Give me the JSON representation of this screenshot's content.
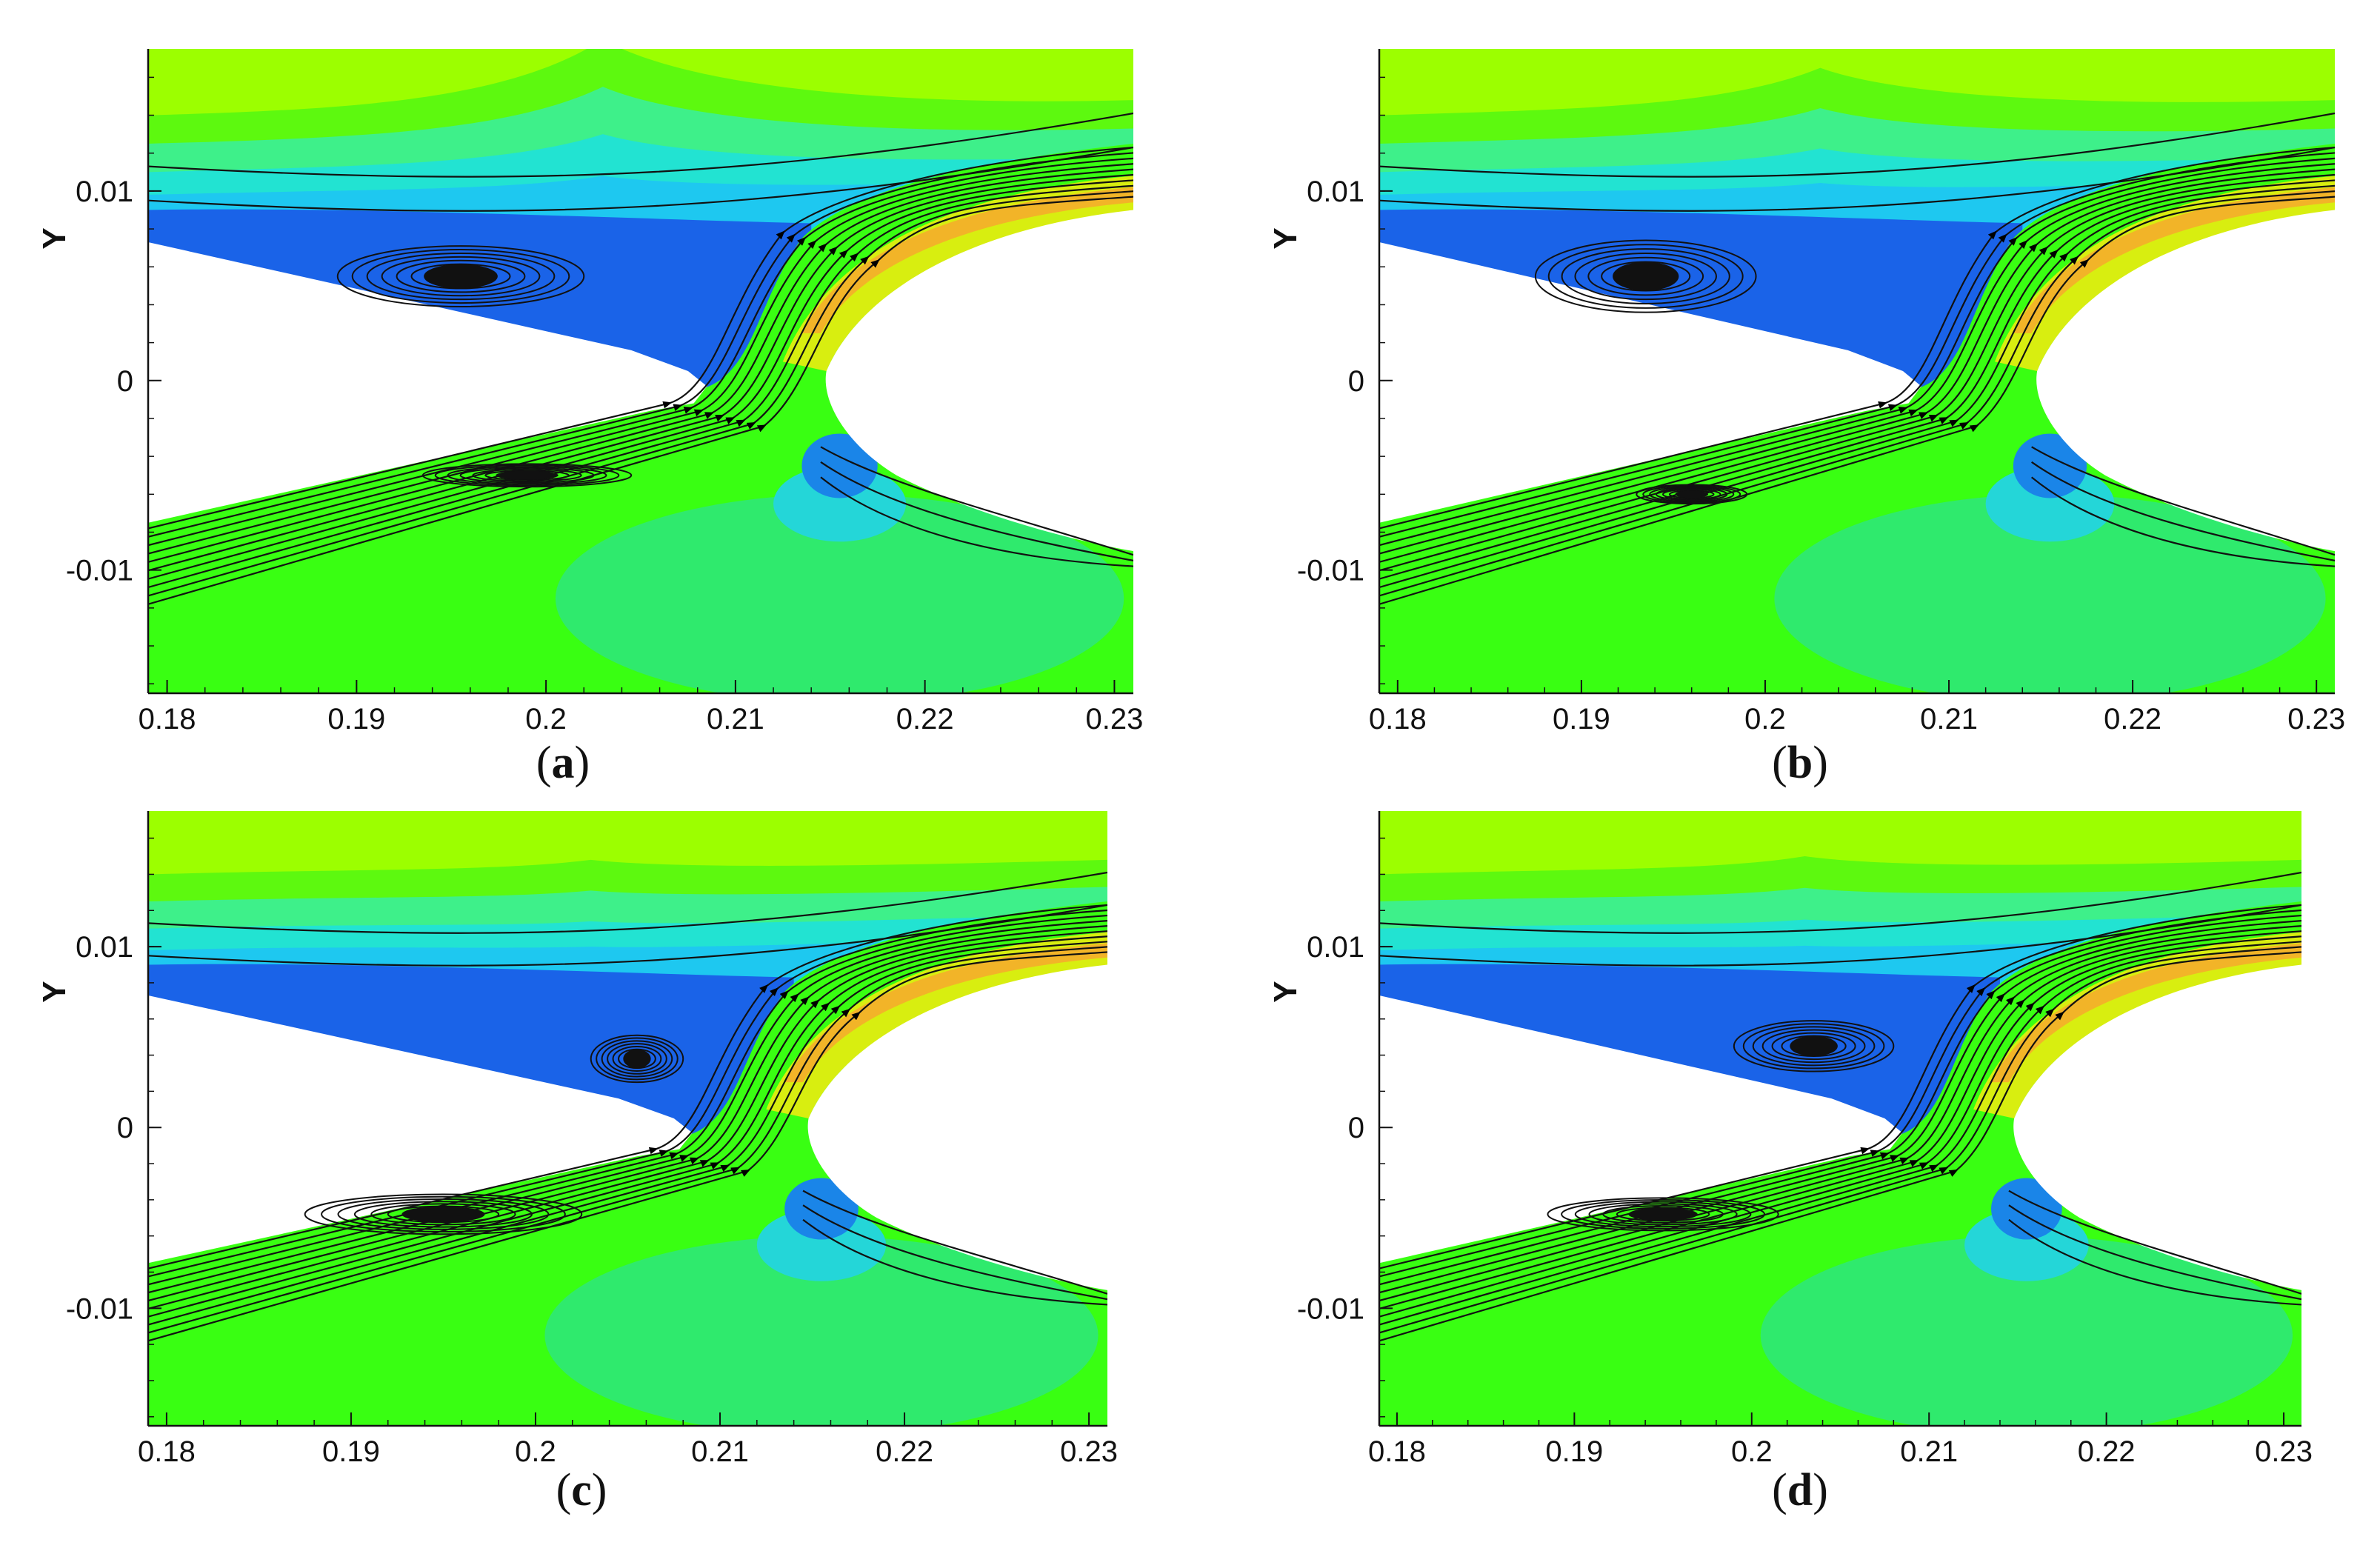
{
  "chart_data": [
    {
      "type": "contour",
      "panel": "a",
      "label_open": "(",
      "label_letter": "a",
      "label_close": ")",
      "ylabel": "Y",
      "xlim": [
        0.179,
        0.231
      ],
      "ylim": [
        -0.0165,
        0.0175
      ],
      "xticks": [
        0.18,
        0.19,
        0.2,
        0.21,
        0.22,
        0.23
      ],
      "xtick_labels": [
        "0.18",
        "0.19",
        "0.2",
        "0.21",
        "0.22",
        "0.23"
      ],
      "yticks": [
        0.01,
        0,
        -0.01
      ],
      "ytick_labels": [
        "0.01",
        "0",
        "-0.01"
      ],
      "vortex_upper": {
        "x": 0.1955,
        "y": 0.0055,
        "rx": 0.0065,
        "ry": 0.0016
      },
      "vortex_lower": {
        "x": 0.199,
        "y": -0.005,
        "rx": 0.0055,
        "ry": 0.0006
      },
      "cloud_top_amp": 0.004,
      "colors": {
        "freestream": "#9cff00",
        "channel": "#39ff12",
        "separated": "#1a63e8"
      }
    },
    {
      "type": "contour",
      "panel": "b",
      "label_open": "(",
      "label_letter": "b",
      "label_close": ")",
      "ylabel": "Y",
      "xlim": [
        0.179,
        0.231
      ],
      "ylim": [
        -0.0165,
        0.0175
      ],
      "xticks": [
        0.18,
        0.19,
        0.2,
        0.21,
        0.22,
        0.23
      ],
      "xtick_labels": [
        "0.18",
        "0.19",
        "0.2",
        "0.21",
        "0.22",
        "0.23"
      ],
      "yticks": [
        0.01,
        0,
        -0.01
      ],
      "ytick_labels": [
        "0.01",
        "0",
        "-0.01"
      ],
      "vortex_upper": {
        "x": 0.1935,
        "y": 0.0055,
        "rx": 0.006,
        "ry": 0.0019
      },
      "vortex_lower": {
        "x": 0.196,
        "y": -0.006,
        "rx": 0.003,
        "ry": 0.0005
      },
      "cloud_top_amp": 0.0025,
      "colors": {
        "freestream": "#9cff00",
        "channel": "#39ff12",
        "separated": "#1a63e8"
      }
    },
    {
      "type": "contour",
      "panel": "c",
      "label_open": "(",
      "label_letter": "c",
      "label_close": ")",
      "ylabel": "Y",
      "xlim": [
        0.179,
        0.231
      ],
      "ylim": [
        -0.0165,
        0.0175
      ],
      "xticks": [
        0.18,
        0.19,
        0.2,
        0.21,
        0.22,
        0.23
      ],
      "xtick_labels": [
        "0.18",
        "0.19",
        "0.2",
        "0.21",
        "0.22",
        "0.23"
      ],
      "yticks": [
        0.01,
        0,
        -0.01
      ],
      "ytick_labels": [
        "0.01",
        "0",
        "-0.01"
      ],
      "vortex_upper": {
        "x": 0.2055,
        "y": 0.0038,
        "rx": 0.0025,
        "ry": 0.0013
      },
      "vortex_lower": {
        "x": 0.195,
        "y": -0.0048,
        "rx": 0.0075,
        "ry": 0.0011
      },
      "cloud_top_amp": 0.0008,
      "colors": {
        "freestream": "#9cff00",
        "channel": "#39ff12",
        "separated": "#1a63e8"
      }
    },
    {
      "type": "contour",
      "panel": "d",
      "label_open": "(",
      "label_letter": "d",
      "label_close": ")",
      "ylabel": "Y",
      "xlim": [
        0.179,
        0.231
      ],
      "ylim": [
        -0.0165,
        0.0175
      ],
      "xticks": [
        0.18,
        0.19,
        0.2,
        0.21,
        0.22,
        0.23
      ],
      "xtick_labels": [
        "0.18",
        "0.19",
        "0.2",
        "0.21",
        "0.22",
        "0.23"
      ],
      "yticks": [
        0.01,
        0,
        -0.01
      ],
      "ytick_labels": [
        "0.01",
        "0",
        "-0.01"
      ],
      "vortex_upper": {
        "x": 0.2035,
        "y": 0.0045,
        "rx": 0.0045,
        "ry": 0.0014
      },
      "vortex_lower": {
        "x": 0.195,
        "y": -0.0048,
        "rx": 0.0065,
        "ry": 0.0009
      },
      "cloud_top_amp": 0.001,
      "colors": {
        "freestream": "#9cff00",
        "channel": "#39ff12",
        "separated": "#1a63e8"
      }
    }
  ]
}
